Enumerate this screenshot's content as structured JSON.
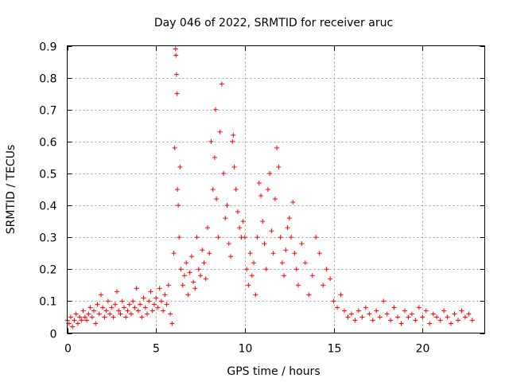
{
  "chart_data": {
    "type": "scatter",
    "title": "Day 046 of 2022, SRMTID for receiver aruc",
    "xlabel": "GPS time / hours",
    "ylabel": "SRMTID / TECUs",
    "xlim": [
      0,
      23.5
    ],
    "ylim": [
      0,
      0.9
    ],
    "xticks": [
      0,
      5,
      10,
      15,
      20
    ],
    "xtick_labels": [
      "0",
      "5",
      "10",
      "15",
      "20"
    ],
    "yticks": [
      0,
      0.1,
      0.2,
      0.3,
      0.4,
      0.5,
      0.6,
      0.7,
      0.8,
      0.9
    ],
    "ytick_labels": [
      "0",
      "0.1",
      "0.2",
      "0.3",
      "0.4",
      "0.5",
      "0.6",
      "0.7",
      "0.8",
      "0.9"
    ],
    "grid": true,
    "marker": "+",
    "series": [
      {
        "name": "SRMTID",
        "color": "#ff0000",
        "points": [
          [
            0.0,
            0.04
          ],
          [
            0.1,
            0.03
          ],
          [
            0.2,
            0.05
          ],
          [
            0.3,
            0.02
          ],
          [
            0.4,
            0.04
          ],
          [
            0.5,
            0.06
          ],
          [
            0.6,
            0.03
          ],
          [
            0.7,
            0.05
          ],
          [
            0.8,
            0.04
          ],
          [
            0.9,
            0.07
          ],
          [
            1.0,
            0.05
          ],
          [
            1.1,
            0.04
          ],
          [
            1.2,
            0.06
          ],
          [
            1.3,
            0.08
          ],
          [
            1.4,
            0.05
          ],
          [
            1.5,
            0.07
          ],
          [
            1.6,
            0.03
          ],
          [
            1.7,
            0.09
          ],
          [
            1.8,
            0.06
          ],
          [
            1.9,
            0.12
          ],
          [
            2.0,
            0.08
          ],
          [
            2.1,
            0.05
          ],
          [
            2.2,
            0.07
          ],
          [
            2.3,
            0.1
          ],
          [
            2.4,
            0.06
          ],
          [
            2.5,
            0.08
          ],
          [
            2.6,
            0.05
          ],
          [
            2.7,
            0.09
          ],
          [
            2.8,
            0.13
          ],
          [
            2.9,
            0.07
          ],
          [
            3.0,
            0.06
          ],
          [
            3.1,
            0.1
          ],
          [
            3.2,
            0.08
          ],
          [
            3.3,
            0.05
          ],
          [
            3.4,
            0.07
          ],
          [
            3.5,
            0.09
          ],
          [
            3.6,
            0.06
          ],
          [
            3.7,
            0.1
          ],
          [
            3.8,
            0.08
          ],
          [
            3.9,
            0.14
          ],
          [
            4.0,
            0.07
          ],
          [
            4.1,
            0.09
          ],
          [
            4.2,
            0.05
          ],
          [
            4.3,
            0.11
          ],
          [
            4.4,
            0.08
          ],
          [
            4.5,
            0.06
          ],
          [
            4.6,
            0.1
          ],
          [
            4.7,
            0.13
          ],
          [
            4.8,
            0.07
          ],
          [
            4.9,
            0.09
          ],
          [
            5.0,
            0.11
          ],
          [
            5.1,
            0.08
          ],
          [
            5.2,
            0.14
          ],
          [
            5.3,
            0.1
          ],
          [
            5.4,
            0.07
          ],
          [
            5.5,
            0.12
          ],
          [
            5.6,
            0.09
          ],
          [
            5.7,
            0.15
          ],
          [
            5.8,
            0.06
          ],
          [
            5.9,
            0.03
          ],
          [
            6.0,
            0.25
          ],
          [
            6.05,
            0.58
          ],
          [
            6.1,
            0.89
          ],
          [
            6.12,
            0.87
          ],
          [
            6.15,
            0.81
          ],
          [
            6.18,
            0.75
          ],
          [
            6.2,
            0.45
          ],
          [
            6.25,
            0.4
          ],
          [
            6.3,
            0.3
          ],
          [
            6.35,
            0.52
          ],
          [
            6.4,
            0.2
          ],
          [
            6.5,
            0.15
          ],
          [
            6.6,
            0.18
          ],
          [
            6.7,
            0.22
          ],
          [
            6.8,
            0.12
          ],
          [
            6.9,
            0.19
          ],
          [
            7.0,
            0.24
          ],
          [
            7.1,
            0.16
          ],
          [
            7.2,
            0.14
          ],
          [
            7.3,
            0.3
          ],
          [
            7.4,
            0.2
          ],
          [
            7.5,
            0.18
          ],
          [
            7.6,
            0.26
          ],
          [
            7.7,
            0.22
          ],
          [
            7.8,
            0.17
          ],
          [
            7.9,
            0.33
          ],
          [
            8.0,
            0.25
          ],
          [
            8.1,
            0.6
          ],
          [
            8.2,
            0.45
          ],
          [
            8.3,
            0.55
          ],
          [
            8.35,
            0.7
          ],
          [
            8.4,
            0.42
          ],
          [
            8.5,
            0.3
          ],
          [
            8.6,
            0.63
          ],
          [
            8.7,
            0.78
          ],
          [
            8.8,
            0.5
          ],
          [
            8.9,
            0.36
          ],
          [
            9.0,
            0.4
          ],
          [
            9.1,
            0.28
          ],
          [
            9.2,
            0.24
          ],
          [
            9.3,
            0.6
          ],
          [
            9.35,
            0.62
          ],
          [
            9.4,
            0.52
          ],
          [
            9.5,
            0.45
          ],
          [
            9.6,
            0.38
          ],
          [
            9.7,
            0.33
          ],
          [
            9.8,
            0.3
          ],
          [
            9.9,
            0.35
          ],
          [
            10.0,
            0.3
          ],
          [
            10.1,
            0.2
          ],
          [
            10.2,
            0.15
          ],
          [
            10.3,
            0.25
          ],
          [
            10.4,
            0.18
          ],
          [
            10.5,
            0.22
          ],
          [
            10.6,
            0.12
          ],
          [
            10.7,
            0.3
          ],
          [
            10.8,
            0.47
          ],
          [
            10.9,
            0.43
          ],
          [
            11.0,
            0.35
          ],
          [
            11.1,
            0.28
          ],
          [
            11.2,
            0.2
          ],
          [
            11.3,
            0.45
          ],
          [
            11.4,
            0.5
          ],
          [
            11.5,
            0.32
          ],
          [
            11.6,
            0.25
          ],
          [
            11.7,
            0.42
          ],
          [
            11.8,
            0.58
          ],
          [
            11.9,
            0.52
          ],
          [
            12.0,
            0.3
          ],
          [
            12.1,
            0.22
          ],
          [
            12.2,
            0.18
          ],
          [
            12.3,
            0.26
          ],
          [
            12.4,
            0.33
          ],
          [
            12.5,
            0.36
          ],
          [
            12.6,
            0.3
          ],
          [
            12.7,
            0.41
          ],
          [
            12.8,
            0.25
          ],
          [
            12.9,
            0.2
          ],
          [
            13.0,
            0.15
          ],
          [
            13.2,
            0.28
          ],
          [
            13.4,
            0.22
          ],
          [
            13.6,
            0.12
          ],
          [
            13.8,
            0.18
          ],
          [
            14.0,
            0.3
          ],
          [
            14.2,
            0.25
          ],
          [
            14.4,
            0.15
          ],
          [
            14.6,
            0.2
          ],
          [
            14.8,
            0.17
          ],
          [
            15.0,
            0.1
          ],
          [
            15.2,
            0.08
          ],
          [
            15.4,
            0.12
          ],
          [
            15.6,
            0.07
          ],
          [
            15.8,
            0.05
          ],
          [
            16.0,
            0.06
          ],
          [
            16.2,
            0.04
          ],
          [
            16.4,
            0.07
          ],
          [
            16.6,
            0.05
          ],
          [
            16.8,
            0.08
          ],
          [
            17.0,
            0.06
          ],
          [
            17.2,
            0.04
          ],
          [
            17.4,
            0.07
          ],
          [
            17.6,
            0.05
          ],
          [
            17.8,
            0.1
          ],
          [
            18.0,
            0.06
          ],
          [
            18.2,
            0.04
          ],
          [
            18.4,
            0.08
          ],
          [
            18.6,
            0.05
          ],
          [
            18.8,
            0.03
          ],
          [
            19.0,
            0.07
          ],
          [
            19.2,
            0.05
          ],
          [
            19.4,
            0.06
          ],
          [
            19.6,
            0.04
          ],
          [
            19.8,
            0.08
          ],
          [
            20.0,
            0.05
          ],
          [
            20.2,
            0.07
          ],
          [
            20.4,
            0.03
          ],
          [
            20.6,
            0.06
          ],
          [
            20.8,
            0.05
          ],
          [
            21.0,
            0.04
          ],
          [
            21.2,
            0.07
          ],
          [
            21.4,
            0.05
          ],
          [
            21.6,
            0.03
          ],
          [
            21.8,
            0.06
          ],
          [
            22.0,
            0.04
          ],
          [
            22.2,
            0.07
          ],
          [
            22.4,
            0.05
          ],
          [
            22.6,
            0.06
          ],
          [
            22.8,
            0.04
          ]
        ]
      }
    ]
  }
}
